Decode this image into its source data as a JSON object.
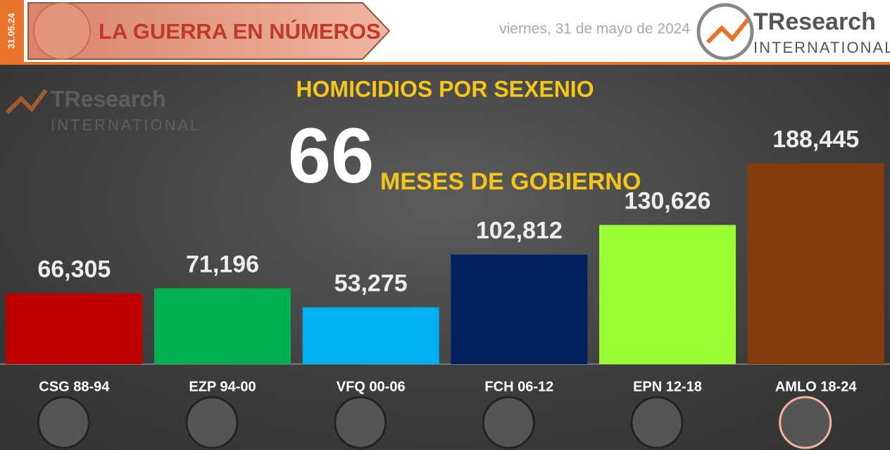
{
  "header": {
    "date_stamp": "31.05.24",
    "banner": "LA GUERRA EN NÚMEROS",
    "date": "viernes, 31 de mayo de 2024",
    "logo_brand": "TResearch",
    "logo_sub": "INTERNATIONAL"
  },
  "watermark": {
    "brand": "TResearch",
    "sub": "INTERNATIONAL"
  },
  "chart_data": {
    "type": "bar",
    "title": "HOMICIDIOS POR SEXENIO",
    "annotation_number": "66",
    "subtitle": "MESES DE GOBIERNO",
    "categories": [
      "CSG 88-94",
      "EZP 94-00",
      "VFQ 00-06",
      "FCH 06-12",
      "EPN 12-18",
      "AMLO 18-24"
    ],
    "values": [
      66305,
      71196,
      53275,
      102812,
      130626,
      188445
    ],
    "value_labels": [
      "66,305",
      "71,196",
      "53,275",
      "102,812",
      "130,626",
      "188,445"
    ],
    "colors": [
      "#c00000",
      "#00b050",
      "#00b0f0",
      "#002060",
      "#99ff33",
      "#843c0c"
    ]
  }
}
